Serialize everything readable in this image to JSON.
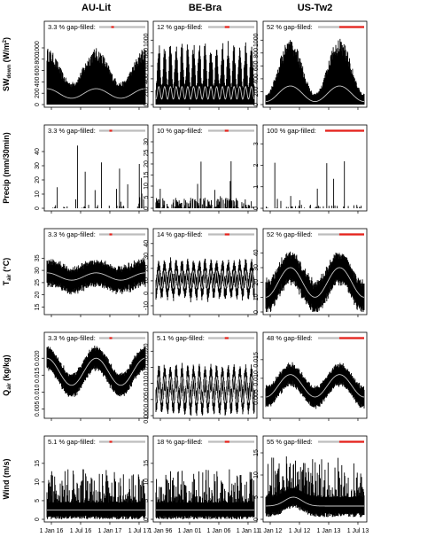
{
  "chart_data": {
    "type": "line",
    "columns": [
      "AU-Lit",
      "BE-Bra",
      "US-Tw2"
    ],
    "rows": [
      {
        "key": "sw",
        "ylabel_main": "SW",
        "ylabel_sub": "down",
        "ylabel_unit": " (W/m",
        "ylabel_sup": "2",
        "ylabel_end": ")"
      },
      {
        "key": "precip",
        "ylabel_main": "Precip (mm/30min)"
      },
      {
        "key": "tair",
        "ylabel_main": "T",
        "ylabel_sub": "air",
        "ylabel_unit": " (°C)"
      },
      {
        "key": "qair",
        "ylabel_main": "Q",
        "ylabel_sub": "air",
        "ylabel_unit": " (kg/kg)"
      },
      {
        "key": "wind",
        "ylabel_main": "Wind (m/s)"
      }
    ],
    "xticks": [
      [
        "1 Jan 16",
        "1 Jul 16",
        "1 Jan 17",
        "1 Jul 17"
      ],
      [
        "1 Jan 96",
        "1 Jan 01",
        "1 Jan 06",
        "1 Jan 11"
      ],
      [
        "1 Jan 12",
        "1 Jul 12",
        "1 Jan 13",
        "1 Jul 13"
      ]
    ],
    "panels": [
      [
        {
          "gap": "3.3 % gap-filled:",
          "ylim": [
            0,
            1250
          ],
          "yticks": [
            "0",
            "200",
            "400",
            "600",
            "800",
            "1000"
          ],
          "ytick_values": [
            0,
            200,
            400,
            600,
            800,
            1000
          ]
        },
        {
          "gap": "3.3 % gap-filled:",
          "ylim": [
            0,
            50
          ],
          "yticks": [
            "0",
            "10",
            "20",
            "30",
            "40"
          ],
          "ytick_values": [
            0,
            10,
            20,
            30,
            40
          ]
        },
        {
          "gap": "3.3 % gap-filled:",
          "ylim": [
            13,
            42
          ],
          "yticks": [
            "15",
            "20",
            "25",
            "30",
            "35"
          ],
          "ytick_values": [
            15,
            20,
            25,
            30,
            35
          ]
        },
        {
          "gap": "3.3 % gap-filled:",
          "ylim": [
            0.003,
            0.024
          ],
          "yticks": [
            "0.005",
            "0.010",
            "0.015",
            "0.020"
          ],
          "ytick_values": [
            0.005,
            0.01,
            0.015,
            0.02
          ]
        },
        {
          "gap": "5.1 % gap-filled:",
          "ylim": [
            0,
            19
          ],
          "yticks": [
            "0",
            "5",
            "10",
            "15"
          ],
          "ytick_values": [
            0,
            5,
            10,
            15
          ]
        }
      ],
      [
        {
          "gap": "12 % gap-filled:",
          "ylim": [
            0,
            1100
          ],
          "yticks": [
            "0",
            "200",
            "400",
            "600",
            "800",
            "1000"
          ],
          "ytick_values": [
            0,
            200,
            400,
            600,
            800,
            1000
          ]
        },
        {
          "gap": "10 % gap-filled:",
          "ylim": [
            0,
            32
          ],
          "yticks": [
            "0",
            "5",
            "10",
            "15",
            "20",
            "25",
            "30"
          ],
          "ytick_values": [
            0,
            5,
            10,
            15,
            20,
            25,
            30
          ]
        },
        {
          "gap": "14 % gap-filled:",
          "ylim": [
            -15,
            42
          ],
          "yticks": [
            "-10",
            "0",
            "10",
            "20",
            "30",
            "40"
          ],
          "ytick_values": [
            -10,
            0,
            10,
            20,
            30,
            40
          ]
        },
        {
          "gap": "5.1 % gap-filled:",
          "ylim": [
            0,
            0.022
          ],
          "yticks": [
            "0.000",
            "0.005",
            "0.010",
            "0.015",
            "0.020"
          ],
          "ytick_values": [
            0,
            0.005,
            0.01,
            0.015,
            0.02
          ]
        },
        {
          "gap": "18 % gap-filled:",
          "ylim": [
            0,
            19
          ],
          "yticks": [
            "0",
            "5",
            "10",
            "15"
          ],
          "ytick_values": [
            0,
            5,
            10,
            15
          ]
        }
      ],
      [
        {
          "gap": "52 % gap-filled:",
          "ylim": [
            0,
            1100
          ],
          "yticks": [
            "0",
            "200",
            "400",
            "600",
            "800",
            "1000"
          ],
          "ytick_values": [
            0,
            200,
            400,
            600,
            800,
            1000
          ]
        },
        {
          "gap": "100 % gap-filled:",
          "ylim": [
            0,
            3.3
          ],
          "yticks": [
            "0",
            "1",
            "2",
            "3"
          ],
          "ytick_values": [
            0,
            1,
            2,
            3
          ]
        },
        {
          "gap": "52 % gap-filled:",
          "ylim": [
            0,
            48
          ],
          "yticks": [
            "0",
            "10",
            "20",
            "30",
            "40"
          ],
          "ytick_values": [
            0,
            10,
            20,
            30,
            40
          ]
        },
        {
          "gap": "48 % gap-filled:",
          "ylim": [
            0,
            0.019
          ],
          "yticks": [
            "0.005",
            "0.010",
            "0.015"
          ],
          "ytick_values": [
            0.005,
            0.01,
            0.015
          ]
        },
        {
          "gap": "55 % gap-filled:",
          "ylim": [
            0,
            16
          ],
          "yticks": [
            "0",
            "5",
            "10",
            "15"
          ],
          "ytick_values": [
            0,
            5,
            10,
            15
          ]
        }
      ]
    ]
  }
}
